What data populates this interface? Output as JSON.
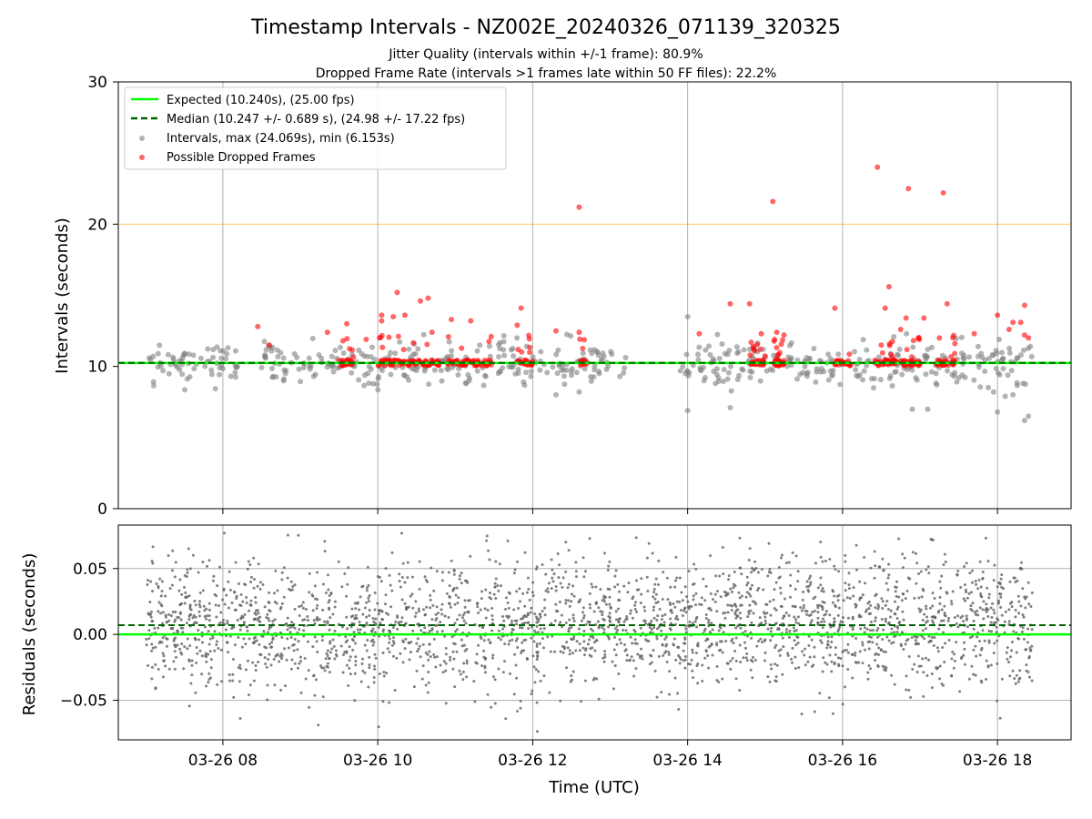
{
  "figure": {
    "title": "Timestamp Intervals - NZ002E_20240326_071139_320325",
    "subtitle1": "Jitter Quality (intervals within +/-1 frame): 80.9%",
    "subtitle2": "Dropped Frame Rate (intervals >1 frames late within 50 FF files): 22.2%"
  },
  "colors": {
    "expected": "#00ff00",
    "median": "#006400",
    "intervals": "#808080",
    "dropped": "#ff0000",
    "threshold": "#ffa500",
    "grid": "#b0b0b0"
  },
  "chart_data": [
    {
      "type": "scatter",
      "ylabel": "Intervals (seconds)",
      "ylim": [
        0,
        30
      ],
      "yticks": [
        0,
        10,
        20,
        30
      ],
      "xlim_hours": [
        6.65,
        18.95
      ],
      "xticks": [
        8,
        10,
        12,
        14,
        16,
        18
      ],
      "grid": true,
      "legend_position": "upper-left",
      "reference_lines": {
        "expected": 10.24,
        "median": 10.247,
        "threshold": 20.0
      },
      "legend": [
        "Expected (10.240s), (25.00 fps)",
        "Median (10.247 +/- 0.689 s), (24.98 +/- 17.22 fps)",
        "Intervals, max (24.069s), min (6.153s)",
        "Possible Dropped Frames"
      ],
      "intervals_summary": {
        "max": 24.069,
        "min": 6.153,
        "approx_range_hours": [
          7.0,
          18.4
        ]
      },
      "dropped_frames_outliers": [
        {
          "hour": 8.45,
          "value": 12.8
        },
        {
          "hour": 8.6,
          "value": 11.5
        },
        {
          "hour": 9.35,
          "value": 12.4
        },
        {
          "hour": 9.55,
          "value": 11.8
        },
        {
          "hour": 9.6,
          "value": 13.0
        },
        {
          "hour": 9.85,
          "value": 11.9
        },
        {
          "hour": 10.05,
          "value": 13.6
        },
        {
          "hour": 10.05,
          "value": 13.2
        },
        {
          "hour": 10.2,
          "value": 13.5
        },
        {
          "hour": 10.25,
          "value": 15.2
        },
        {
          "hour": 10.35,
          "value": 13.6
        },
        {
          "hour": 10.55,
          "value": 14.6
        },
        {
          "hour": 10.65,
          "value": 14.8
        },
        {
          "hour": 10.7,
          "value": 12.4
        },
        {
          "hour": 10.95,
          "value": 13.3
        },
        {
          "hour": 11.2,
          "value": 13.2
        },
        {
          "hour": 11.85,
          "value": 14.1
        },
        {
          "hour": 11.8,
          "value": 12.9
        },
        {
          "hour": 12.3,
          "value": 12.5
        },
        {
          "hour": 12.6,
          "value": 12.4
        },
        {
          "hour": 12.6,
          "value": 21.2
        },
        {
          "hour": 14.15,
          "value": 12.3
        },
        {
          "hour": 14.55,
          "value": 14.4
        },
        {
          "hour": 14.8,
          "value": 14.4
        },
        {
          "hour": 14.95,
          "value": 12.3
        },
        {
          "hour": 15.1,
          "value": 21.6
        },
        {
          "hour": 15.15,
          "value": 12.4
        },
        {
          "hour": 15.9,
          "value": 14.1
        },
        {
          "hour": 16.45,
          "value": 24.0
        },
        {
          "hour": 16.5,
          "value": 11.5
        },
        {
          "hour": 16.55,
          "value": 14.1
        },
        {
          "hour": 16.6,
          "value": 15.6
        },
        {
          "hour": 16.75,
          "value": 12.6
        },
        {
          "hour": 16.85,
          "value": 22.5
        },
        {
          "hour": 16.82,
          "value": 13.4
        },
        {
          "hour": 17.05,
          "value": 13.4
        },
        {
          "hour": 17.25,
          "value": 12.0
        },
        {
          "hour": 17.3,
          "value": 22.2
        },
        {
          "hour": 17.35,
          "value": 14.4
        },
        {
          "hour": 17.45,
          "value": 11.6
        },
        {
          "hour": 17.7,
          "value": 12.3
        },
        {
          "hour": 18.0,
          "value": 13.6
        },
        {
          "hour": 18.15,
          "value": 12.6
        },
        {
          "hour": 18.2,
          "value": 13.1
        },
        {
          "hour": 18.3,
          "value": 13.1
        },
        {
          "hour": 18.35,
          "value": 12.2
        },
        {
          "hour": 18.35,
          "value": 14.3
        },
        {
          "hour": 18.4,
          "value": 12.0
        }
      ],
      "interval_outliers": [
        {
          "hour": 14.0,
          "value": 13.5
        },
        {
          "hour": 14.0,
          "value": 6.9
        },
        {
          "hour": 14.55,
          "value": 7.1
        },
        {
          "hour": 16.4,
          "value": 8.5
        },
        {
          "hour": 16.9,
          "value": 7.0
        },
        {
          "hour": 17.1,
          "value": 7.0
        },
        {
          "hour": 17.95,
          "value": 8.2
        },
        {
          "hour": 18.0,
          "value": 6.8
        },
        {
          "hour": 18.1,
          "value": 7.9
        },
        {
          "hour": 18.2,
          "value": 8.0
        },
        {
          "hour": 18.35,
          "value": 6.2
        },
        {
          "hour": 18.4,
          "value": 6.5
        },
        {
          "hour": 12.3,
          "value": 8.0
        },
        {
          "hour": 12.6,
          "value": 8.2
        }
      ]
    },
    {
      "type": "scatter",
      "xlabel": "Time (UTC)",
      "ylabel": "Residuals (seconds)",
      "ylim": [
        -0.08,
        0.083
      ],
      "yticks": [
        -0.05,
        0.0,
        0.05
      ],
      "ytick_labels": [
        "−0.05",
        "0.00",
        "0.05"
      ],
      "xtick_labels": [
        "03-26 08",
        "03-26 10",
        "03-26 12",
        "03-26 14",
        "03-26 16",
        "03-26 18"
      ],
      "grid": true,
      "reference_lines": {
        "expected": 0.0,
        "median": 0.007
      },
      "residual_summary": {
        "approx_center": 0.007,
        "approx_spread": 0.025,
        "approx_min": -0.075,
        "approx_max": 0.078
      }
    }
  ]
}
